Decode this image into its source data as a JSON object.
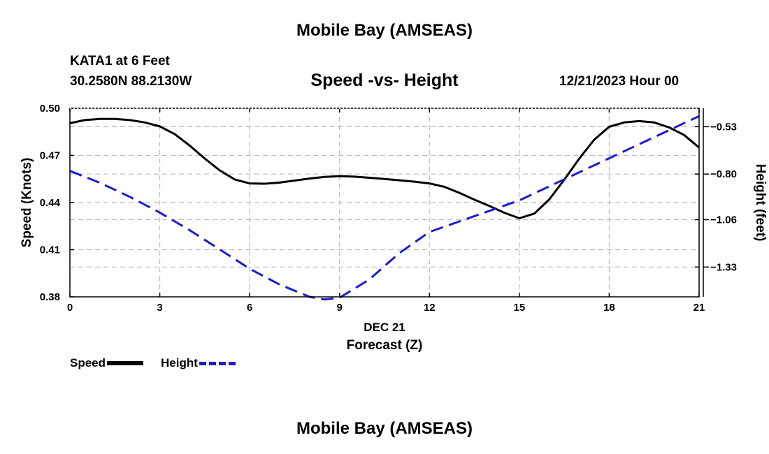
{
  "header": {
    "title": "Mobile Bay (AMSEAS)",
    "station": "KATA1 at 6 Feet",
    "coords": "30.2580N  88.2130W",
    "subtitle": "Speed -vs- Height",
    "datetime": "12/21/2023 Hour 00"
  },
  "footer": {
    "title": "Mobile Bay (AMSEAS)"
  },
  "legend": {
    "speed_label": "Speed",
    "height_label": "Height"
  },
  "colors": {
    "speed": "#000000",
    "height": "#1c1ccc",
    "grid": "#bbbbbb"
  },
  "chart_data": {
    "type": "line",
    "title": "Speed -vs- Height",
    "xlabel": "Forecast (Z)",
    "xlabel_date": "DEC 21",
    "ylabel": "Speed (Knots)",
    "y2label": "Height (feet)",
    "xlim": [
      0,
      21
    ],
    "ylim": [
      0.38,
      0.5
    ],
    "y2lim": [
      -1.5,
      -0.425
    ],
    "x_ticks": [
      "0",
      "3",
      "6",
      "9",
      "12",
      "15",
      "18",
      "21"
    ],
    "y_ticks": [
      "0.38",
      "0.41",
      "0.44",
      "0.47",
      "0.50"
    ],
    "y2_ticks": [
      "-1.33",
      "-1.06",
      "-0.80",
      "-0.53"
    ],
    "series": [
      {
        "name": "Speed",
        "axis": "left",
        "x": [
          0,
          0.5,
          1,
          1.5,
          2,
          2.5,
          3,
          3.5,
          4,
          4.5,
          5,
          5.5,
          6,
          6.5,
          7,
          7.5,
          8,
          8.5,
          9,
          9.5,
          10,
          10.5,
          11,
          11.5,
          12,
          12.5,
          13,
          13.5,
          14,
          14.5,
          15,
          15.5,
          16,
          16.5,
          17,
          17.5,
          18,
          18.5,
          19,
          19.5,
          20,
          20.5,
          21
        ],
        "values": [
          0.4905,
          0.4925,
          0.4932,
          0.4932,
          0.4925,
          0.491,
          0.4885,
          0.4835,
          0.4762,
          0.468,
          0.4605,
          0.4547,
          0.4522,
          0.452,
          0.4527,
          0.454,
          0.4553,
          0.4563,
          0.4568,
          0.4565,
          0.4558,
          0.455,
          0.4542,
          0.4533,
          0.4522,
          0.45,
          0.4462,
          0.4418,
          0.4378,
          0.4335,
          0.43,
          0.433,
          0.442,
          0.4545,
          0.468,
          0.48,
          0.4882,
          0.491,
          0.4918,
          0.491,
          0.4878,
          0.483,
          0.475
        ]
      },
      {
        "name": "Height",
        "axis": "right",
        "x": [
          0,
          1,
          2,
          3,
          4,
          5,
          6,
          7,
          8,
          8.5,
          9,
          10,
          11,
          12,
          13,
          14,
          15,
          16,
          17,
          18,
          19,
          20,
          21
        ],
        "values": [
          -0.782,
          -0.85,
          -0.93,
          -1.02,
          -1.12,
          -1.23,
          -1.34,
          -1.43,
          -1.5,
          -1.515,
          -1.505,
          -1.4,
          -1.25,
          -1.13,
          -1.07,
          -1.01,
          -0.95,
          -0.87,
          -0.79,
          -0.71,
          -0.63,
          -0.55,
          -0.47
        ]
      }
    ]
  }
}
